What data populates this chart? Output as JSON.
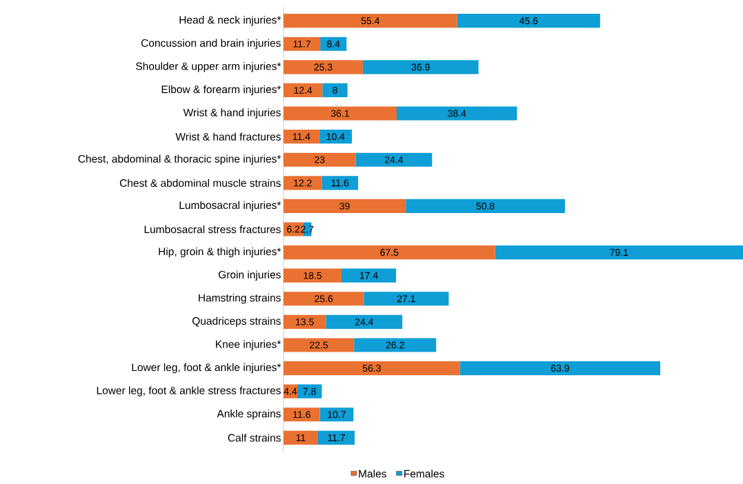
{
  "chart_data": {
    "type": "bar",
    "orientation": "horizontal",
    "stacked": true,
    "data_labels": true,
    "legend": "bottom",
    "tick_labels": "y",
    "xlim": [
      0,
      146.6
    ],
    "categories": [
      "Head & neck injuries*",
      "Concussion and brain injuries",
      "Shoulder & upper arm injuries*",
      "Elbow & forearm injuries*",
      "Wrist & hand injuries",
      "Wrist & hand fractures",
      "Chest, abdominal & thoracic spine injuries*",
      "Chest & abdominal muscle strains",
      "Lumbosacral injuries*",
      "Lumbosacral stress fractures",
      "Hip, groin & thigh injuries*",
      "Groin injuries",
      "Hamstring strains",
      "Quadriceps strains",
      "Knee injuries*",
      "Lower leg, foot & ankle injuries*",
      "Lower leg, foot & ankle stress fractures",
      "Ankle sprains",
      "Calf strains"
    ],
    "series": [
      {
        "name": "Males",
        "color": "#e97132",
        "values": [
          55.4,
          11.7,
          25.3,
          12.4,
          36.1,
          11.4,
          23,
          12.2,
          39,
          6.2,
          67.5,
          18.5,
          25.6,
          13.5,
          22.5,
          56.3,
          4.4,
          11.6,
          11
        ]
      },
      {
        "name": "Females",
        "color": "#0f9ed5",
        "values": [
          45.6,
          8.4,
          36.9,
          8,
          38.4,
          10.4,
          24.4,
          11.6,
          50.8,
          2.7,
          79.1,
          17.4,
          27.1,
          24.4,
          26.2,
          63.9,
          7.8,
          10.7,
          11.7
        ]
      }
    ]
  }
}
